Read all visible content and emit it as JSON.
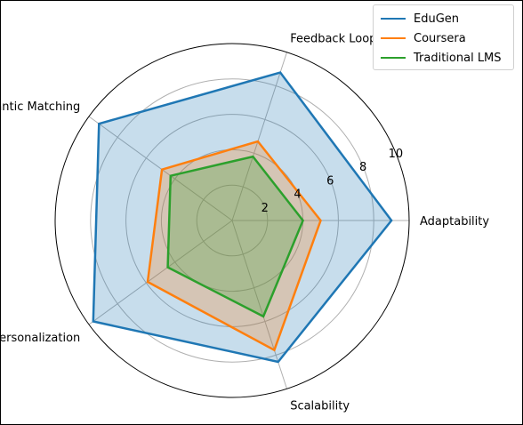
{
  "chart_data": {
    "type": "radar",
    "axes": [
      "Adaptability",
      "Feedback Loop",
      "Semantic Matching",
      "Personalization",
      "Scalability"
    ],
    "rticks": [
      2,
      4,
      6,
      8,
      10
    ],
    "rlim": [
      0,
      10
    ],
    "grid": true,
    "legend_position": "top-right",
    "series": [
      {
        "name": "EduGen",
        "values": [
          9,
          8.8,
          9.3,
          9.7,
          8.4
        ],
        "color": "#1f77b4",
        "fill": "#1f77b4"
      },
      {
        "name": "Coursera",
        "values": [
          5,
          4.7,
          4.9,
          5.9,
          7.7
        ],
        "color": "#ff7f0e",
        "fill": "#ff7f0e"
      },
      {
        "name": "Traditional LMS",
        "values": [
          4,
          3.8,
          4.3,
          4.5,
          5.7
        ],
        "color": "#2ca02c",
        "fill": "#2ca02c"
      }
    ]
  }
}
